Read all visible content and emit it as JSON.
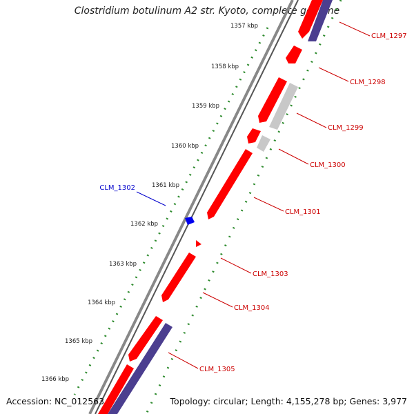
{
  "title": "Clostridium botulinum A2 str. Kyoto, complete genome",
  "footer": {
    "accession_label": "Accession:",
    "accession": "NC_012563",
    "topology_label": "Topology:",
    "topology": "circular",
    "length_label": "Length:",
    "length": "4,155,278 bp",
    "genes_label": "Genes:",
    "genes": "3,977"
  },
  "colors": {
    "forward_gene": "#ff0000",
    "reverse_gene": "#3333cc",
    "other_cds": "#c8c8c8",
    "operon_band": "#4b3e8f",
    "backbone": "#777777",
    "tick_track": "#2e8b2e",
    "forward_label": "#cc0000",
    "reverse_label": "#0000cc"
  },
  "scale": {
    "unit": "kbp",
    "ticks": [
      {
        "label": "1357 kbp"
      },
      {
        "label": "1358 kbp"
      },
      {
        "label": "1359 kbp"
      },
      {
        "label": "1360 kbp"
      },
      {
        "label": "1361 kbp"
      },
      {
        "label": "1362 kbp"
      },
      {
        "label": "1363 kbp"
      },
      {
        "label": "1364 kbp"
      },
      {
        "label": "1365 kbp"
      },
      {
        "label": "1366 kbp"
      }
    ]
  },
  "genes": [
    {
      "label": "CLM_1297",
      "strand": "forward"
    },
    {
      "label": "CLM_1298",
      "strand": "forward"
    },
    {
      "label": "CLM_1299",
      "strand": "forward"
    },
    {
      "label": "CLM_1300",
      "strand": "forward"
    },
    {
      "label": "CLM_1301",
      "strand": "forward"
    },
    {
      "label": "CLM_1302",
      "strand": "reverse"
    },
    {
      "label": "CLM_1303",
      "strand": "forward"
    },
    {
      "label": "CLM_1304",
      "strand": "forward"
    },
    {
      "label": "CLM_1305",
      "strand": "forward"
    }
  ]
}
